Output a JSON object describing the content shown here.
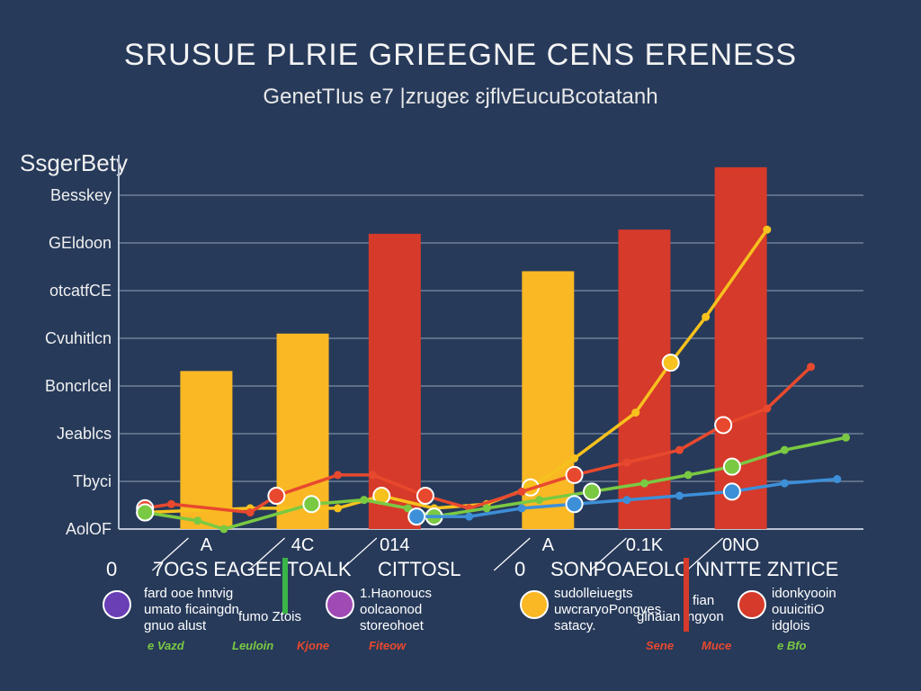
{
  "chart_data": {
    "type": "bar",
    "title": "SRUSUE PLRIE GRIEEGNE CENS ERENESS",
    "subtitle": "GenetTIus e7 |zrugeɛ ɛjflvEucuBcotatanh",
    "ylabel": "SsgerBety",
    "y_tick_labels": [
      "Besskey",
      "GEldoon",
      "otcatfCE",
      "Cvuhitlcn",
      "Boncrlcel",
      "Jeablcs",
      "Tbyci",
      "AolOF"
    ],
    "categories": [
      "A",
      "4C",
      "014",
      "A",
      "0.1K",
      "0NO"
    ],
    "bar_colors": [
      "#f9b824",
      "#f9b824",
      "#d63a2a",
      "#f9b824",
      "#d63a2a",
      "#d63a2a"
    ],
    "values": [
      3.8,
      4.7,
      7.1,
      6.2,
      7.2,
      8.7
    ],
    "ylim": [
      0,
      9
    ],
    "grid": true,
    "series": [
      {
        "color": "#f7c11e",
        "x": [
          0.3,
          1.5,
          2.5,
          3.0,
          3.6,
          4.2,
          4.7,
          5.2,
          5.9,
          6.3,
          6.7,
          7.4
        ],
        "values": [
          0.4,
          0.5,
          0.5,
          0.8,
          0.5,
          0.6,
          1.0,
          1.7,
          2.8,
          4.0,
          5.1,
          7.2
        ]
      },
      {
        "color": "#e8492e",
        "x": [
          0.3,
          0.6,
          1.5,
          1.8,
          2.5,
          2.9,
          3.5,
          4.0,
          4.6,
          5.2,
          5.8,
          6.4,
          6.9,
          7.4,
          7.9
        ],
        "values": [
          0.5,
          0.6,
          0.4,
          0.8,
          1.3,
          1.3,
          0.8,
          0.5,
          0.9,
          1.3,
          1.6,
          1.9,
          2.5,
          2.9,
          3.9
        ]
      },
      {
        "color": "#7ac943",
        "x": [
          0.3,
          0.9,
          1.2,
          2.2,
          2.8,
          3.3,
          3.6,
          4.2,
          4.8,
          5.4,
          6.0,
          6.5,
          7.0,
          7.6,
          8.3
        ],
        "values": [
          0.4,
          0.2,
          0.0,
          0.6,
          0.7,
          0.5,
          0.3,
          0.5,
          0.7,
          0.9,
          1.1,
          1.3,
          1.5,
          1.9,
          2.2
        ]
      },
      {
        "color": "#3d8fd8",
        "x": [
          3.4,
          4.0,
          4.6,
          5.2,
          5.8,
          6.4,
          7.0,
          7.6,
          8.2
        ],
        "values": [
          0.3,
          0.3,
          0.5,
          0.6,
          0.7,
          0.8,
          0.9,
          1.1,
          1.2
        ]
      }
    ],
    "legend": {
      "placement": "bottom",
      "headers": [
        "0",
        "7OGS EAGEE TOALK",
        "CITTOSL",
        "0",
        "SONPOAEOLO NNTTE ZNTICE"
      ],
      "items": [
        {
          "color": "#6a3fb5",
          "lines": [
            "fard ooe hntvig",
            "umato ficaingdn",
            "gnuo alust"
          ]
        },
        {
          "color": "#a04ab5",
          "lines": [
            "1.Haonoucs",
            "oolcaonod",
            "storeohoet"
          ]
        },
        {
          "color": "#f9b824",
          "lines": [
            "sudolleiuegts",
            "uwcraryoPongves",
            "satacy."
          ]
        },
        {
          "color": "#d63a2a",
          "lines": [
            "idonkyooin",
            "ouuicitiO",
            "idglois"
          ]
        }
      ],
      "mid_labels": [
        {
          "color": "#ffffff",
          "lines": [
            "fumo Ztois"
          ]
        },
        {
          "color": "#ffffff",
          "lines": [
            "fian",
            "glnaian ingyon"
          ]
        }
      ],
      "tags": [
        {
          "text": "e Vazd",
          "color": "#7ac943"
        },
        {
          "text": "Leuloin",
          "color": "#7ac943"
        },
        {
          "text": "Kjone",
          "color": "#e8492e"
        },
        {
          "text": "Fiteow",
          "color": "#e8492e"
        },
        {
          "text": "Sene",
          "color": "#e8492e"
        },
        {
          "text": "Muce",
          "color": "#e8492e"
        },
        {
          "text": "e Bfo",
          "color": "#7ac943"
        }
      ]
    }
  }
}
